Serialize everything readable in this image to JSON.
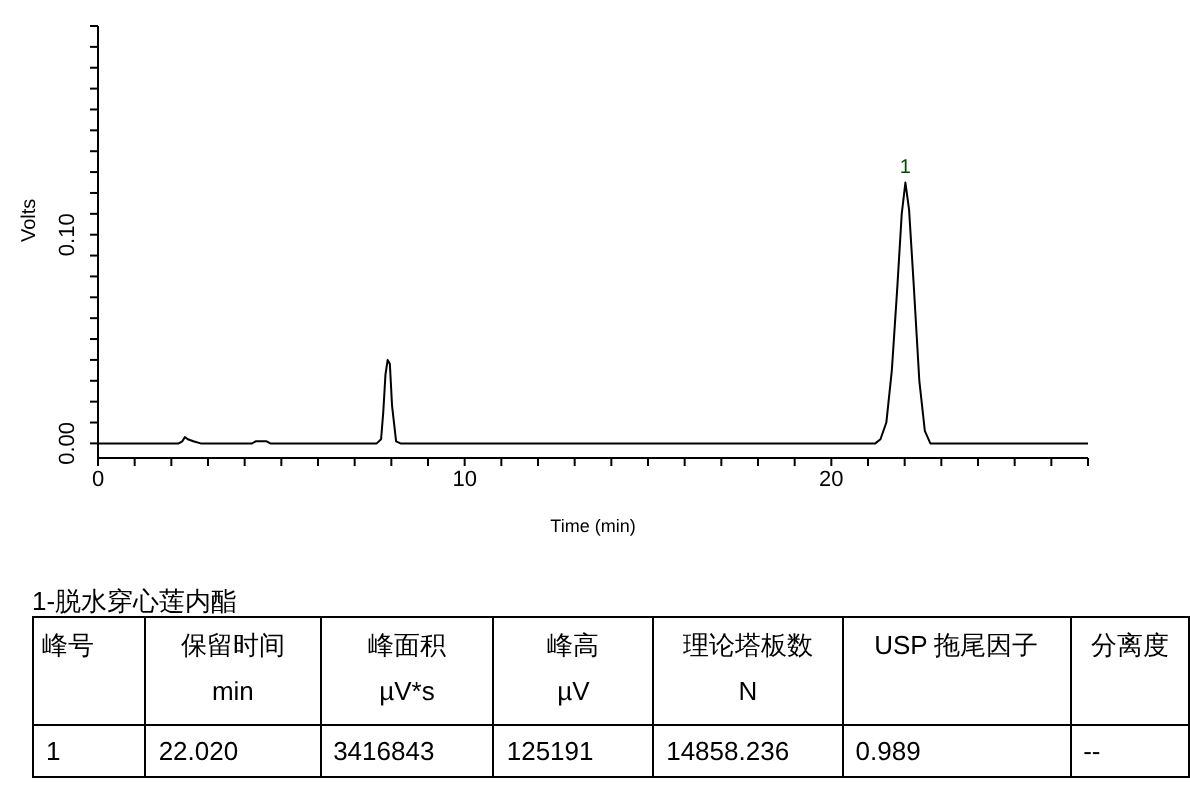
{
  "chart_data": {
    "type": "line",
    "xlabel": "Time (min)",
    "ylabel": "Volts",
    "marker": "none",
    "line_style": "solid",
    "grid": false,
    "legend": false,
    "x": [
      0,
      2.2,
      2.3,
      2.37,
      2.45,
      2.6,
      2.8,
      4.2,
      4.3,
      4.45,
      4.6,
      4.7,
      7.6,
      7.72,
      7.78,
      7.84,
      7.9,
      7.96,
      8.02,
      8.13,
      8.25,
      21.2,
      21.34,
      21.5,
      21.65,
      21.8,
      21.92,
      22.02,
      22.12,
      22.24,
      22.4,
      22.55,
      22.7,
      27
    ],
    "series": [
      {
        "color": "#000000",
        "values": [
          0,
          0,
          0.001,
          0.003,
          0.002,
          0.001,
          0,
          0,
          0.001,
          0.001,
          0.001,
          0,
          0,
          0.002,
          0.015,
          0.033,
          0.04,
          0.038,
          0.018,
          0.001,
          0,
          0,
          0.002,
          0.01,
          0.035,
          0.075,
          0.11,
          0.125,
          0.112,
          0.078,
          0.03,
          0.006,
          0,
          0
        ]
      }
    ],
    "xlim": [
      0,
      27
    ],
    "xticks": [
      0,
      {
        "value": 1,
        "label": null
      },
      {
        "value": 2,
        "label": null
      },
      {
        "value": 3,
        "label": null
      },
      {
        "value": 4,
        "label": null
      },
      {
        "value": 5,
        "label": null
      },
      {
        "value": 6,
        "label": null
      },
      {
        "value": 7,
        "label": null
      },
      {
        "value": 8,
        "label": null
      },
      {
        "value": 9,
        "label": null
      },
      10,
      {
        "value": 11,
        "label": null
      },
      {
        "value": 12,
        "label": null
      },
      {
        "value": 13,
        "label": null
      },
      {
        "value": 14,
        "label": null
      },
      {
        "value": 15,
        "label": null
      },
      {
        "value": 16,
        "label": null
      },
      {
        "value": 17,
        "label": null
      },
      {
        "value": 18,
        "label": null
      },
      {
        "value": 19,
        "label": null
      },
      20,
      {
        "value": 21,
        "label": null
      },
      {
        "value": 22,
        "label": null
      },
      {
        "value": 23,
        "label": null
      },
      {
        "value": 24,
        "label": null
      },
      {
        "value": 25,
        "label": null
      },
      {
        "value": 26,
        "label": null
      },
      {
        "value": 27,
        "label": null
      }
    ],
    "ylim": [
      -0.007,
      0.2
    ],
    "yticks": [
      {
        "value": 0,
        "label": "0.00"
      },
      {
        "value": 0.01,
        "label": null
      },
      {
        "value": 0.02,
        "label": null
      },
      {
        "value": 0.03,
        "label": null
      },
      {
        "value": 0.04,
        "label": null
      },
      {
        "value": 0.05,
        "label": null
      },
      {
        "value": 0.06,
        "label": null
      },
      {
        "value": 0.07,
        "label": null
      },
      {
        "value": 0.08,
        "label": null
      },
      {
        "value": 0.09,
        "label": null
      },
      {
        "value": 0.1,
        "label": "0.10"
      },
      {
        "value": 0.11,
        "label": null
      },
      {
        "value": 0.12,
        "label": null
      },
      {
        "value": 0.13,
        "label": null
      },
      {
        "value": 0.14,
        "label": null
      },
      {
        "value": 0.15,
        "label": null
      },
      {
        "value": 0.16,
        "label": null
      },
      {
        "value": 0.17,
        "label": null
      },
      {
        "value": 0.18,
        "label": null
      },
      {
        "value": 0.19,
        "label": null
      },
      {
        "value": 0.2,
        "label": null
      }
    ],
    "annotations": [
      {
        "text": "1",
        "x": 22.02,
        "y": 0.125
      },
      "1-脱水穿心莲内酯",
      "峰号",
      "保留时间\nmin",
      "峰面积\nµV*s",
      "峰高\nµV",
      "理论塔板数\nN",
      "USP 拖尾因子",
      "分离度",
      "1",
      "22.020",
      "3416843",
      "125191",
      "14858.236",
      "0.989",
      "--"
    ]
  }
}
